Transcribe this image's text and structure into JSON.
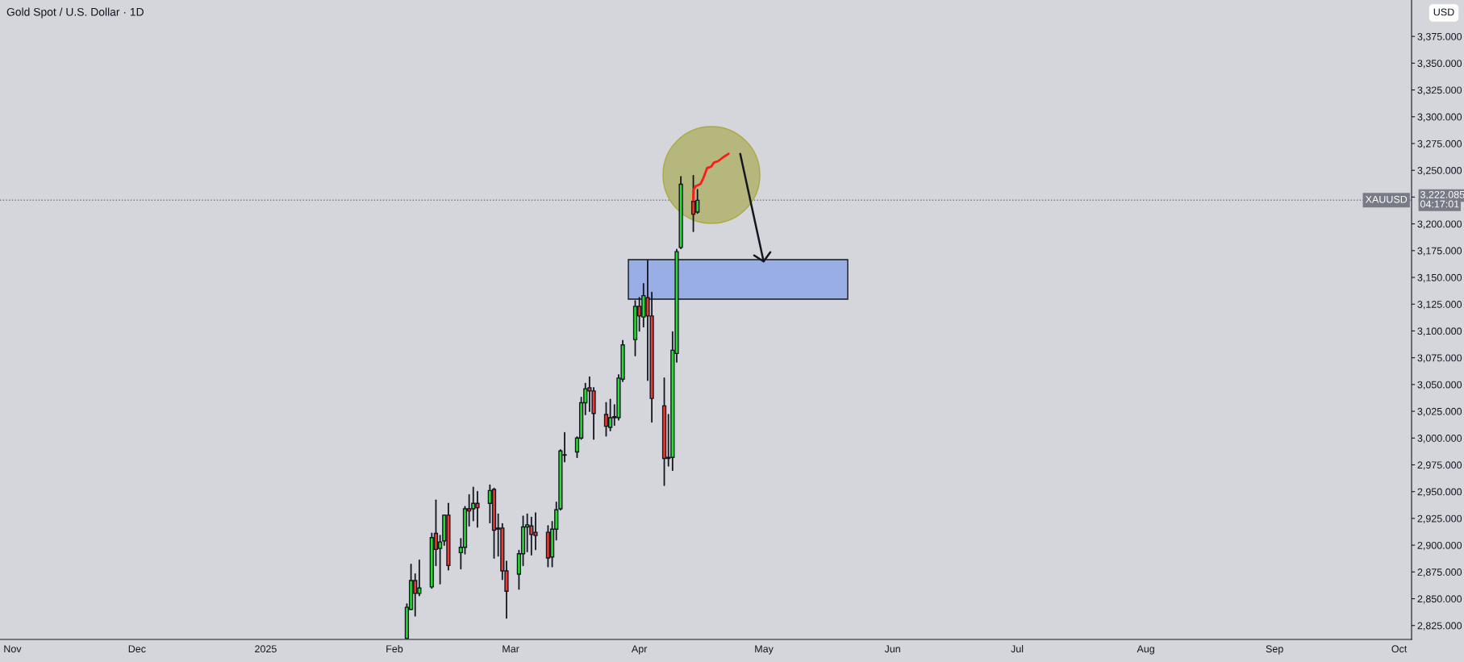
{
  "chart_data": {
    "type": "candlestick",
    "title": "Gold Spot / U.S. Dollar · 1D",
    "x": [
      "2025-02-04",
      "2025-02-05",
      "2025-02-06",
      "2025-02-07",
      "2025-02-10",
      "2025-02-11",
      "2025-02-12",
      "2025-02-13",
      "2025-02-14",
      "2025-02-17",
      "2025-02-18",
      "2025-02-19",
      "2025-02-20",
      "2025-02-21",
      "2025-02-24",
      "2025-02-25",
      "2025-02-26",
      "2025-02-27",
      "2025-02-28",
      "2025-03-03",
      "2025-03-04",
      "2025-03-05",
      "2025-03-06",
      "2025-03-07",
      "2025-03-10",
      "2025-03-11",
      "2025-03-12",
      "2025-03-13",
      "2025-03-14",
      "2025-03-17",
      "2025-03-18",
      "2025-03-19",
      "2025-03-20",
      "2025-03-21",
      "2025-03-24",
      "2025-03-25",
      "2025-03-26",
      "2025-03-27",
      "2025-03-28",
      "2025-03-31",
      "2025-04-01",
      "2025-04-02",
      "2025-04-03",
      "2025-04-04",
      "2025-04-07",
      "2025-04-08",
      "2025-04-09",
      "2025-04-10",
      "2025-04-11",
      "2025-04-14",
      "2025-04-15"
    ],
    "ohlc": [
      [
        2813,
        2845,
        2813,
        2842
      ],
      [
        2840,
        2882,
        2840,
        2867
      ],
      [
        2867,
        2873,
        2834,
        2855
      ],
      [
        2855,
        2886,
        2853,
        2860
      ],
      [
        2861,
        2911,
        2860,
        2907
      ],
      [
        2911,
        2942,
        2881,
        2896
      ],
      [
        2897,
        2909,
        2864,
        2903
      ],
      [
        2904,
        2928,
        2900,
        2928
      ],
      [
        2928,
        2939,
        2877,
        2881
      ],
      [
        2893,
        2906,
        2878,
        2898
      ],
      [
        2898,
        2936,
        2892,
        2934
      ],
      [
        2934,
        2947,
        2918,
        2932
      ],
      [
        2934,
        2954,
        2923,
        2939
      ],
      [
        2939,
        2950,
        2917,
        2935
      ],
      [
        2939,
        2956,
        2921,
        2951
      ],
      [
        2952,
        2953,
        2888,
        2914
      ],
      [
        2916,
        2929,
        2890,
        2915
      ],
      [
        2916,
        2920,
        2868,
        2876
      ],
      [
        2876,
        2885,
        2832,
        2857
      ],
      [
        2873,
        2895,
        2859,
        2892
      ],
      [
        2892,
        2927,
        2881,
        2917
      ],
      [
        2917,
        2929,
        2894,
        2919
      ],
      [
        2918,
        2926,
        2891,
        2910
      ],
      [
        2912,
        2930,
        2896,
        2909
      ],
      [
        2912,
        2918,
        2880,
        2888
      ],
      [
        2889,
        2922,
        2880,
        2915
      ],
      [
        2915,
        2940,
        2905,
        2933
      ],
      [
        2934,
        2989,
        2933,
        2988
      ],
      [
        2984,
        3005,
        2978,
        2984
      ],
      [
        2987,
        3001,
        2982,
        3000
      ],
      [
        3000,
        3038,
        2999,
        3033
      ],
      [
        3033,
        3051,
        3022,
        3046
      ],
      [
        3047,
        3057,
        3025,
        3044
      ],
      [
        3044,
        3047,
        2999,
        3023
      ],
      [
        3022,
        3033,
        3002,
        3011
      ],
      [
        3010,
        3036,
        3007,
        3019
      ],
      [
        3020,
        3031,
        3012,
        3019
      ],
      [
        3019,
        3059,
        3017,
        3056
      ],
      [
        3055,
        3091,
        3053,
        3087
      ],
      [
        3092,
        3128,
        3077,
        3123
      ],
      [
        3123,
        3131,
        3100,
        3114
      ],
      [
        3113,
        3144,
        3104,
        3133
      ],
      [
        3131,
        3166,
        3054,
        3114
      ],
      [
        3114,
        3136,
        3015,
        3037
      ],
      [
        3030,
        3056,
        2956,
        2981
      ],
      [
        2982,
        3022,
        2974,
        2981
      ],
      [
        2982,
        3099,
        2970,
        3082
      ],
      [
        3079,
        3176,
        3071,
        3174
      ],
      [
        3178,
        3244,
        3177,
        3237
      ],
      [
        3221,
        3245,
        3193,
        3209
      ],
      [
        3211,
        3232,
        3210,
        3222
      ]
    ],
    "colors": [
      "#22e32c",
      "#22e32c",
      "#f2392f",
      "#22e32c",
      "#22e32c",
      "#f2392f",
      "#22e32c",
      "#22e32c",
      "#f2392f",
      "#22e32c",
      "#22e32c",
      "#f2392f",
      "#22e32c",
      "#f2392f",
      "#22e32c",
      "#f2392f",
      "#f2392f",
      "#f2392f",
      "#f2392f",
      "#22e32c",
      "#22e32c",
      "#22e32c",
      "#f2392f",
      "#f2392f",
      "#f2392f",
      "#22e32c",
      "#22e32c",
      "#22e32c",
      "#f2392f",
      "#22e32c",
      "#22e32c",
      "#22e32c",
      "#f2392f",
      "#f2392f",
      "#f2392f",
      "#22e32c",
      "#f2392f",
      "#22e32c",
      "#22e32c",
      "#22e32c",
      "#f2392f",
      "#22e32c",
      "#f2392f",
      "#f2392f",
      "#f2392f",
      "#f2392f",
      "#22e32c",
      "#22e32c",
      "#22e32c",
      "#f2392f",
      "#22e32c"
    ],
    "xlim": [
      "2024-10-29",
      "2025-10-04"
    ],
    "xticks": [
      {
        "value": "2024-11-01",
        "label": "Nov"
      },
      {
        "value": "2024-12-01",
        "label": "Dec"
      },
      {
        "value": "2025-01-01",
        "label": "2025"
      },
      {
        "value": "2025-02-01",
        "label": "Feb"
      },
      {
        "value": "2025-03-01",
        "label": "Mar"
      },
      {
        "value": "2025-04-01",
        "label": "Apr"
      },
      {
        "value": "2025-05-01",
        "label": "May"
      },
      {
        "value": "2025-06-01",
        "label": "Jun"
      },
      {
        "value": "2025-07-01",
        "label": "Jul"
      },
      {
        "value": "2025-08-01",
        "label": "Aug"
      },
      {
        "value": "2025-09-01",
        "label": "Sep"
      },
      {
        "value": "2025-10-01",
        "label": "Oct"
      }
    ],
    "ylim": [
      2812,
      3409
    ],
    "yticks": [
      {
        "value": 2825,
        "label": "2,825.000"
      },
      {
        "value": 2850,
        "label": "2,850.000"
      },
      {
        "value": 2875,
        "label": "2,875.000"
      },
      {
        "value": 2900,
        "label": "2,900.000"
      },
      {
        "value": 2925,
        "label": "2,925.000"
      },
      {
        "value": 2950,
        "label": "2,950.000"
      },
      {
        "value": 2975,
        "label": "2,975.000"
      },
      {
        "value": 3000,
        "label": "3,000.000"
      },
      {
        "value": 3025,
        "label": "3,025.000"
      },
      {
        "value": 3050,
        "label": "3,050.000"
      },
      {
        "value": 3075,
        "label": "3,075.000"
      },
      {
        "value": 3100,
        "label": "3,100.000"
      },
      {
        "value": 3125,
        "label": "3,125.000"
      },
      {
        "value": 3150,
        "label": "3,150.000"
      },
      {
        "value": 3175,
        "label": "3,175.000"
      },
      {
        "value": 3200,
        "label": "3,200.000"
      },
      {
        "value": 3225,
        "label": null
      },
      {
        "value": 3250,
        "label": "3,250.000"
      },
      {
        "value": 3275,
        "label": "3,275.000"
      },
      {
        "value": 3300,
        "label": "3,300.000"
      },
      {
        "value": 3325,
        "label": "3,325.000"
      },
      {
        "value": 3350,
        "label": "3,350.000"
      },
      {
        "value": 3375,
        "label": "3,375.000"
      }
    ],
    "ref_lines": [
      {
        "axis": "y",
        "value": 3222.085,
        "label": "XAUUSD",
        "color": "#787b86",
        "line_style": "dotted"
      }
    ],
    "annotations": [
      "USD",
      "3,222.085",
      "04:17:01"
    ],
    "grid": false,
    "legend": false
  }
}
